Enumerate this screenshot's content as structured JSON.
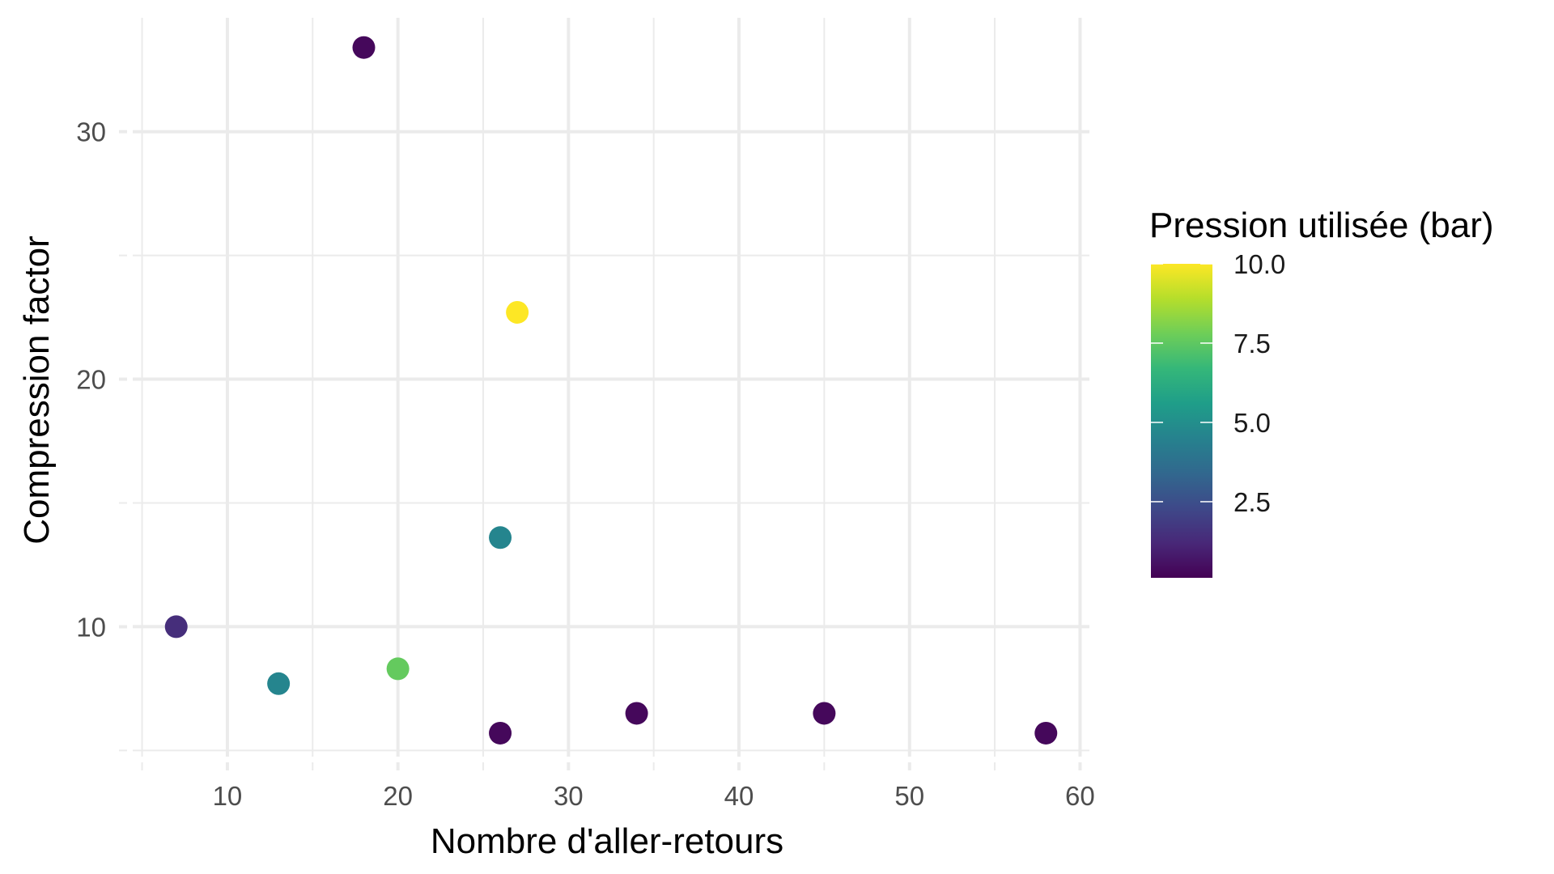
{
  "chart_data": {
    "type": "scatter",
    "xlabel": "Nombre d'aller-retours",
    "ylabel": "Compression factor",
    "xlim": [
      4.45,
      60.55
    ],
    "ylim": [
      4.75,
      34.6
    ],
    "x_ticks": [
      10,
      20,
      30,
      40,
      50,
      60
    ],
    "y_ticks": [
      10,
      20,
      30
    ],
    "x_tick_labels": [
      "10",
      "20",
      "30",
      "40",
      "50",
      "60"
    ],
    "y_tick_labels": [
      "10",
      "20",
      "30"
    ],
    "grid": true,
    "legend": {
      "title": "Pression utilisée (bar)",
      "position": "right",
      "range": [
        0.1,
        10.0
      ],
      "breaks": [
        2.5,
        5.0,
        7.5,
        10.0
      ],
      "break_labels": [
        "2.5",
        "5.0",
        "7.5",
        "10.0"
      ],
      "colormap": [
        "#440154",
        "#482878",
        "#3e4989",
        "#31688e",
        "#26828e",
        "#1f9e89",
        "#35b779",
        "#6ece58",
        "#b5de2b",
        "#fde725"
      ]
    },
    "points": [
      {
        "x": 18,
        "y": 33.4,
        "pressure": 0.3
      },
      {
        "x": 27,
        "y": 22.7,
        "pressure": 10.0
      },
      {
        "x": 26,
        "y": 13.6,
        "pressure": 4.6
      },
      {
        "x": 7,
        "y": 10.0,
        "pressure": 1.4
      },
      {
        "x": 13,
        "y": 7.7,
        "pressure": 4.6
      },
      {
        "x": 20,
        "y": 8.3,
        "pressure": 7.6
      },
      {
        "x": 26,
        "y": 5.7,
        "pressure": 0.3
      },
      {
        "x": 34,
        "y": 6.5,
        "pressure": 0.3
      },
      {
        "x": 45,
        "y": 6.5,
        "pressure": 0.3
      },
      {
        "x": 58,
        "y": 5.7,
        "pressure": 0.3
      }
    ]
  }
}
